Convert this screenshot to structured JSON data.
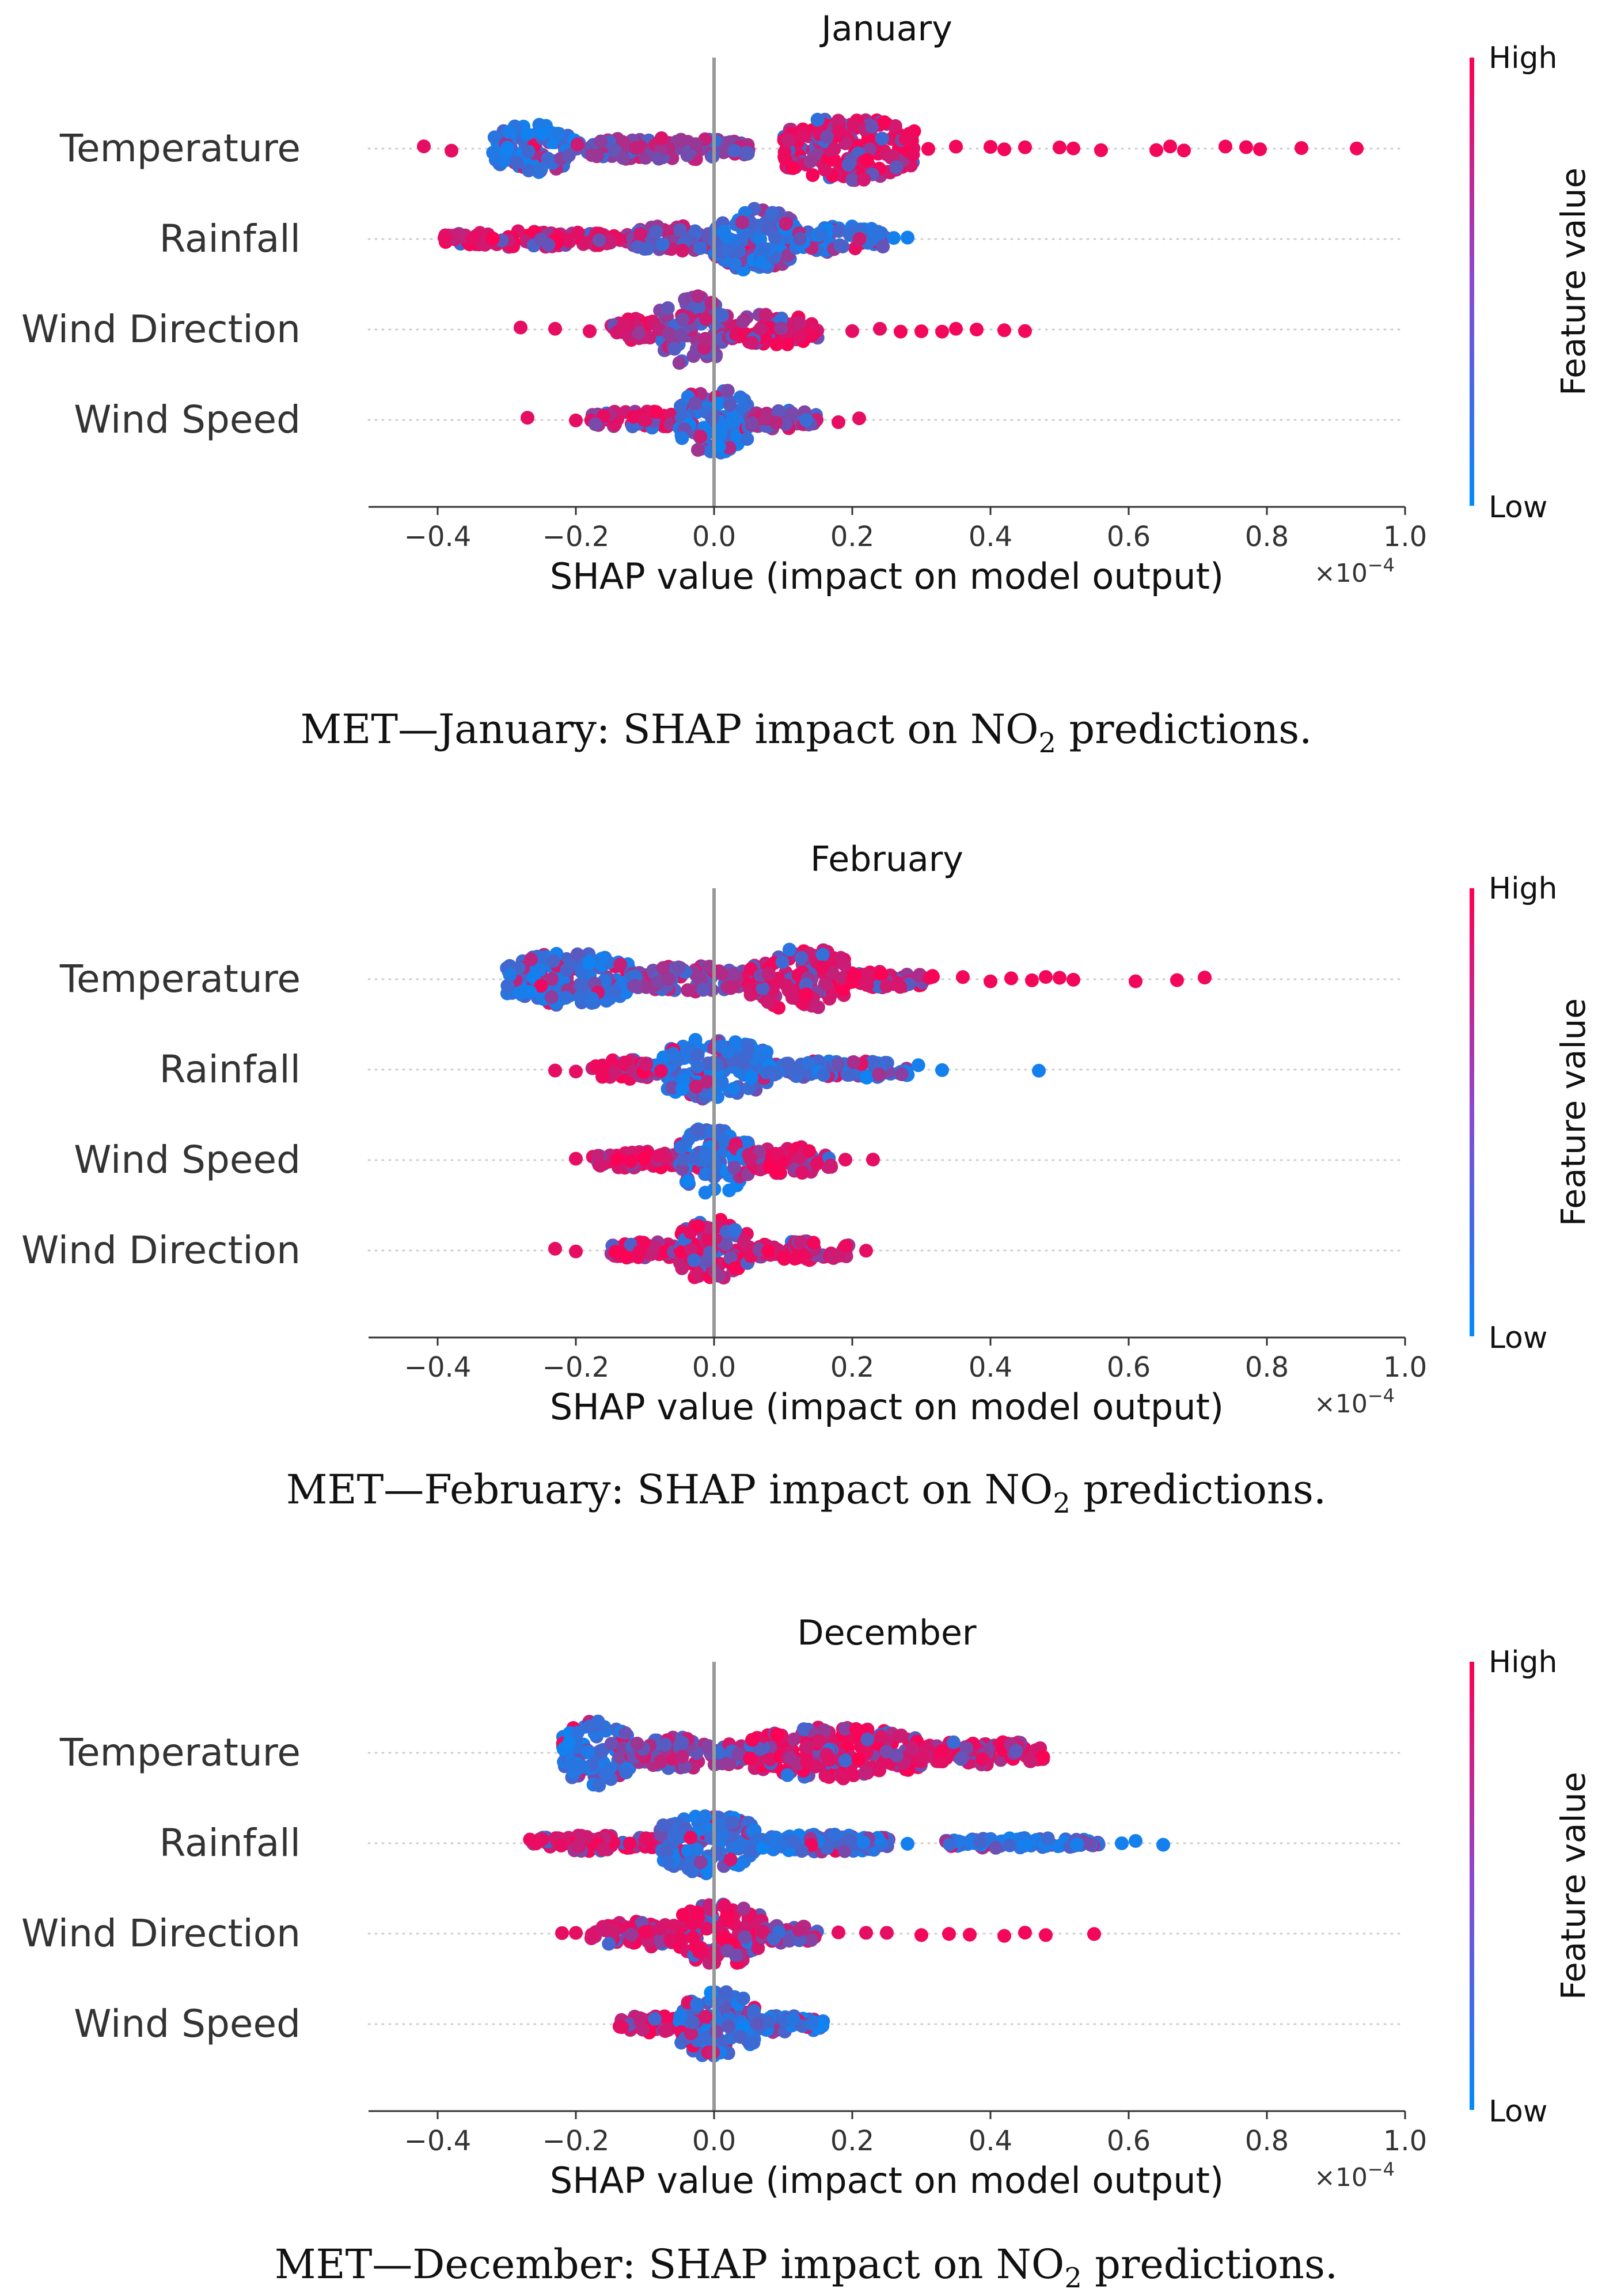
{
  "figure": {
    "colorbar": {
      "high_label": "High",
      "low_label": "Low",
      "title": "Feature value",
      "colors": {
        "low": "#008bfb",
        "high": "#ff0052"
      }
    },
    "xlabel": "SHAP value (impact on model output)",
    "x_multiplier": "×10",
    "x_multiplier_exp": "−4",
    "tick_labels": [
      "−0.4",
      "−0.2",
      "0.0",
      "0.2",
      "0.4",
      "0.6",
      "0.8",
      "1.0"
    ]
  },
  "chart_data": [
    {
      "type": "scatter",
      "subtype": "shap-beeswarm",
      "title": "January",
      "caption": {
        "before": "MET—January: SHAP impact on NO",
        "sub": "2",
        "after": " predictions."
      },
      "xlabel": "SHAP value (impact on model output)",
      "x_scale": "×10^-4",
      "xlim": [
        -0.5,
        1.0
      ],
      "xticks": [
        -0.4,
        -0.2,
        0.0,
        0.2,
        0.4,
        0.6,
        0.8,
        1.0
      ],
      "features": [
        {
          "name": "Temperature",
          "range": [
            -0.42,
            0.93
          ],
          "dense": [
            {
              "from": -0.32,
              "to": -0.2,
              "h": 0.55,
              "color": "low"
            },
            {
              "from": -0.2,
              "to": 0.05,
              "h": 0.25,
              "color": "mid"
            },
            {
              "from": 0.1,
              "to": 0.29,
              "h": 0.72,
              "color": "high"
            }
          ],
          "sparse": [
            -0.42,
            -0.38,
            0.31,
            0.35,
            0.4,
            0.42,
            0.45,
            0.5,
            0.52,
            0.56,
            0.64,
            0.66,
            0.68,
            0.74,
            0.77,
            0.79,
            0.85,
            0.93
          ]
        },
        {
          "name": "Rainfall",
          "range": [
            -0.39,
            0.28
          ],
          "dense": [
            {
              "from": -0.39,
              "to": -0.12,
              "h": 0.18,
              "color": "high"
            },
            {
              "from": -0.12,
              "to": 0.0,
              "h": 0.3,
              "color": "mid"
            },
            {
              "from": 0.0,
              "to": 0.12,
              "h": 0.72,
              "color": "low"
            },
            {
              "from": 0.12,
              "to": 0.25,
              "h": 0.3,
              "color": "low"
            }
          ],
          "sparse": [
            -0.39,
            -0.35,
            0.26,
            0.28
          ]
        },
        {
          "name": "Wind Direction",
          "range": [
            -0.28,
            0.45
          ],
          "dense": [
            {
              "from": -0.15,
              "to": -0.08,
              "h": 0.25,
              "color": "high"
            },
            {
              "from": -0.08,
              "to": 0.02,
              "h": 0.78,
              "color": "mid"
            },
            {
              "from": 0.02,
              "to": 0.15,
              "h": 0.35,
              "color": "high"
            }
          ],
          "sparse": [
            -0.28,
            -0.23,
            -0.18,
            0.2,
            0.24,
            0.27,
            0.3,
            0.33,
            0.35,
            0.38,
            0.42,
            0.45
          ]
        },
        {
          "name": "Wind Speed",
          "range": [
            -0.27,
            0.21
          ],
          "dense": [
            {
              "from": -0.18,
              "to": -0.05,
              "h": 0.2,
              "color": "high"
            },
            {
              "from": -0.05,
              "to": 0.05,
              "h": 0.75,
              "color": "low"
            },
            {
              "from": 0.05,
              "to": 0.15,
              "h": 0.22,
              "color": "mid"
            }
          ],
          "sparse": [
            -0.27,
            -0.2,
            0.18,
            0.21
          ]
        }
      ]
    },
    {
      "type": "scatter",
      "subtype": "shap-beeswarm",
      "title": "February",
      "caption": {
        "before": "MET—February: SHAP impact on NO",
        "sub": "2",
        "after": " predictions."
      },
      "xlabel": "SHAP value (impact on model output)",
      "x_scale": "×10^-4",
      "xlim": [
        -0.5,
        1.0
      ],
      "xticks": [
        -0.4,
        -0.2,
        0.0,
        0.2,
        0.4,
        0.6,
        0.8,
        1.0
      ],
      "features": [
        {
          "name": "Temperature",
          "range": [
            -0.31,
            0.71
          ],
          "dense": [
            {
              "from": -0.3,
              "to": -0.12,
              "h": 0.6,
              "color": "low"
            },
            {
              "from": -0.12,
              "to": 0.05,
              "h": 0.3,
              "color": "mid"
            },
            {
              "from": 0.05,
              "to": 0.2,
              "h": 0.7,
              "color": "high"
            },
            {
              "from": 0.2,
              "to": 0.32,
              "h": 0.2,
              "color": "high"
            }
          ],
          "sparse": [
            0.36,
            0.4,
            0.43,
            0.46,
            0.48,
            0.5,
            0.52,
            0.61,
            0.67,
            0.71
          ]
        },
        {
          "name": "Rainfall",
          "range": [
            -0.23,
            0.47
          ],
          "dense": [
            {
              "from": -0.18,
              "to": -0.08,
              "h": 0.22,
              "color": "high"
            },
            {
              "from": -0.08,
              "to": 0.08,
              "h": 0.7,
              "color": "low"
            },
            {
              "from": 0.08,
              "to": 0.3,
              "h": 0.2,
              "color": "low"
            }
          ],
          "sparse": [
            -0.23,
            -0.2,
            0.33,
            0.47
          ]
        },
        {
          "name": "Wind Speed",
          "range": [
            -0.2,
            0.23
          ],
          "dense": [
            {
              "from": -0.18,
              "to": -0.05,
              "h": 0.2,
              "color": "high"
            },
            {
              "from": -0.05,
              "to": 0.05,
              "h": 0.75,
              "color": "low"
            },
            {
              "from": 0.05,
              "to": 0.17,
              "h": 0.3,
              "color": "high"
            }
          ],
          "sparse": [
            -0.2,
            0.19,
            0.23
          ]
        },
        {
          "name": "Wind Direction",
          "range": [
            -0.23,
            0.22
          ],
          "dense": [
            {
              "from": -0.15,
              "to": -0.05,
              "h": 0.2,
              "color": "high"
            },
            {
              "from": -0.05,
              "to": 0.05,
              "h": 0.72,
              "color": "high"
            },
            {
              "from": 0.05,
              "to": 0.2,
              "h": 0.22,
              "color": "high"
            }
          ],
          "sparse": [
            -0.23,
            -0.2,
            0.22
          ]
        }
      ]
    },
    {
      "type": "scatter",
      "subtype": "shap-beeswarm",
      "title": "December",
      "caption": {
        "before": "MET—December: SHAP impact on NO",
        "sub": "2",
        "after": " predictions."
      },
      "xlabel": "SHAP value (impact on model output)",
      "x_scale": "×10^-4",
      "xlim": [
        -0.5,
        1.0
      ],
      "xticks": [
        -0.4,
        -0.2,
        0.0,
        0.2,
        0.4,
        0.6,
        0.8,
        1.0
      ],
      "features": [
        {
          "name": "Temperature",
          "range": [
            -0.22,
            0.48
          ],
          "dense": [
            {
              "from": -0.22,
              "to": -0.12,
              "h": 0.75,
              "color": "low"
            },
            {
              "from": -0.12,
              "to": 0.05,
              "h": 0.35,
              "color": "mid"
            },
            {
              "from": 0.05,
              "to": 0.3,
              "h": 0.6,
              "color": "high"
            },
            {
              "from": 0.3,
              "to": 0.48,
              "h": 0.28,
              "color": "high"
            }
          ],
          "sparse": []
        },
        {
          "name": "Rainfall",
          "range": [
            -0.27,
            0.65
          ],
          "dense": [
            {
              "from": -0.27,
              "to": -0.08,
              "h": 0.18,
              "color": "high"
            },
            {
              "from": -0.08,
              "to": 0.06,
              "h": 0.72,
              "color": "low"
            },
            {
              "from": 0.06,
              "to": 0.26,
              "h": 0.2,
              "color": "low"
            },
            {
              "from": 0.33,
              "to": 0.56,
              "h": 0.12,
              "color": "low"
            }
          ],
          "sparse": [
            0.28,
            0.59,
            0.61,
            0.65
          ]
        },
        {
          "name": "Wind Direction",
          "range": [
            -0.22,
            0.55
          ],
          "dense": [
            {
              "from": -0.18,
              "to": -0.05,
              "h": 0.3,
              "color": "high"
            },
            {
              "from": -0.05,
              "to": 0.07,
              "h": 0.75,
              "color": "high"
            },
            {
              "from": 0.07,
              "to": 0.15,
              "h": 0.22,
              "color": "mid"
            }
          ],
          "sparse": [
            -0.22,
            -0.2,
            0.18,
            0.22,
            0.25,
            0.3,
            0.34,
            0.37,
            0.42,
            0.45,
            0.48,
            0.55
          ]
        },
        {
          "name": "Wind Speed",
          "range": [
            -0.14,
            0.16
          ],
          "dense": [
            {
              "from": -0.14,
              "to": -0.05,
              "h": 0.2,
              "color": "high"
            },
            {
              "from": -0.05,
              "to": 0.06,
              "h": 0.75,
              "color": "low"
            },
            {
              "from": 0.06,
              "to": 0.16,
              "h": 0.2,
              "color": "low"
            }
          ],
          "sparse": []
        }
      ]
    }
  ]
}
